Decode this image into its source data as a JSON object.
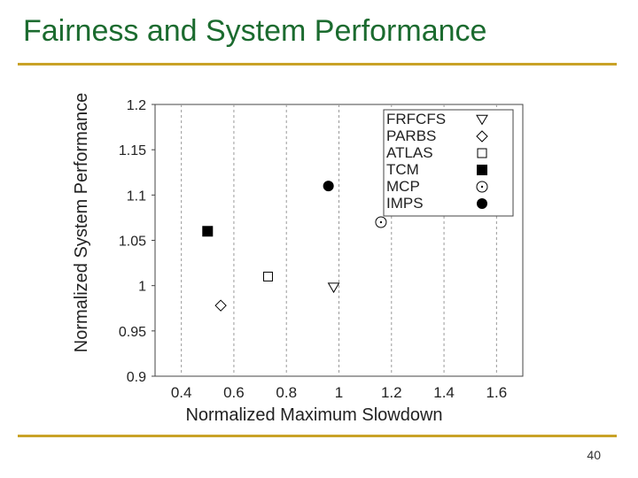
{
  "slide": {
    "title": "Fairness and System Performance",
    "page_number": "40"
  },
  "colors": {
    "title": "#1b6b2f",
    "rule": "#c9a227",
    "grid": "#9a9a9a",
    "axis": "#444444",
    "marker": "#000000"
  },
  "chart_data": {
    "type": "scatter",
    "title": "",
    "xlabel": "Normalized Maximum Slowdown",
    "ylabel": "Normalized System Performance",
    "xlim": [
      0.3,
      1.7
    ],
    "ylim": [
      0.9,
      1.2
    ],
    "x_ticks": [
      "0.4",
      "0.6",
      "0.8",
      "1",
      "1.2",
      "1.4",
      "1.6"
    ],
    "x_tick_values": [
      0.4,
      0.6,
      0.8,
      1.0,
      1.2,
      1.4,
      1.6
    ],
    "y_ticks": [
      "1.2",
      "1.15",
      "1.1",
      "1.05",
      "1",
      "0.95",
      "0.9"
    ],
    "y_tick_values": [
      1.2,
      1.15,
      1.1,
      1.05,
      1.0,
      0.95,
      0.9
    ],
    "grid": "vertical dashed at x ticks",
    "legend_position": "top-right",
    "series": [
      {
        "name": "FRFCFS",
        "marker": "triangle-down-open",
        "x": 0.98,
        "y": 0.998
      },
      {
        "name": "PARBS",
        "marker": "diamond-open",
        "x": 0.55,
        "y": 0.978
      },
      {
        "name": "ATLAS",
        "marker": "square-open",
        "x": 0.73,
        "y": 1.01
      },
      {
        "name": "TCM",
        "marker": "square-filled",
        "x": 0.5,
        "y": 1.06
      },
      {
        "name": "MCP",
        "marker": "circle-dotted",
        "x": 1.16,
        "y": 1.07
      },
      {
        "name": "IMPS",
        "marker": "circle-filled",
        "x": 0.96,
        "y": 1.11
      }
    ]
  }
}
